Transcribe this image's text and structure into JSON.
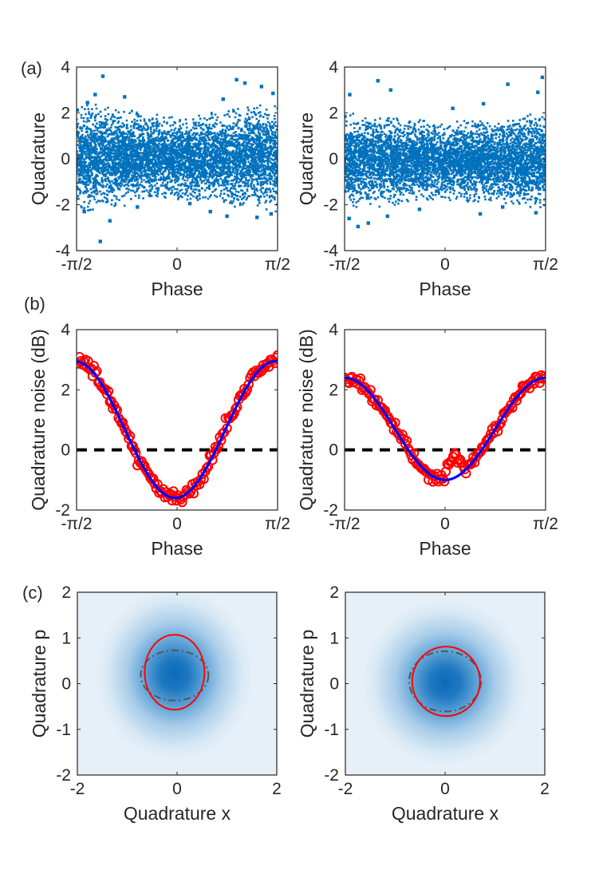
{
  "figure": {
    "panel_labels": [
      "(a)",
      "(b)",
      "(c)"
    ]
  },
  "colors": {
    "scatter": "#0072bd",
    "marker": "#ff0000",
    "fit": "#0000ff",
    "reference": "#000000",
    "contour_fit": "#ff0000",
    "contour_ref": "#555555",
    "density_high": "#0a6ab8",
    "density_low": "#e6f0f8"
  },
  "chart_data": [
    {
      "id": "a-left",
      "type": "scatter",
      "panel": "(a)",
      "xlabel": "Phase",
      "ylabel": "Quadrature",
      "xlim": [
        -1.5708,
        1.5708
      ],
      "ylim": [
        -4,
        4
      ],
      "xticks": [
        -1.5708,
        0,
        1.5708
      ],
      "xticklabels": [
        "-π/2",
        "0",
        "π/2"
      ],
      "yticks": [
        -4,
        -2,
        0,
        2,
        4
      ],
      "yticklabels": [
        "-4",
        "-2",
        "0",
        "2",
        "4"
      ],
      "band": {
        "center": 0.05,
        "halfwidth_edges": 1.75,
        "halfwidth_mid": 1.35
      },
      "outliers": [
        [
          -1.16,
          3.6
        ],
        [
          -1.28,
          2.8
        ],
        [
          -0.82,
          2.7
        ],
        [
          0.93,
          3.45
        ],
        [
          1.06,
          3.3
        ],
        [
          1.32,
          3.15
        ],
        [
          1.5,
          2.85
        ],
        [
          -1.4,
          2.45
        ],
        [
          0.72,
          2.6
        ],
        [
          -1.2,
          -3.6
        ],
        [
          -1.05,
          -2.7
        ],
        [
          -1.45,
          -2.3
        ],
        [
          0.78,
          -2.5
        ],
        [
          1.25,
          -2.55
        ],
        [
          1.47,
          -2.4
        ],
        [
          0.52,
          -2.3
        ],
        [
          -0.62,
          -2.1
        ],
        [
          0.2,
          -1.95
        ]
      ]
    },
    {
      "id": "a-right",
      "type": "scatter",
      "panel": "(a)",
      "xlabel": "Phase",
      "ylabel": "Quadrature",
      "xlim": [
        -1.5708,
        1.5708
      ],
      "ylim": [
        -4,
        4
      ],
      "xticks": [
        -1.5708,
        0,
        1.5708
      ],
      "xticklabels": [
        "-π/2",
        "0",
        "π/2"
      ],
      "yticks": [
        -4,
        -2,
        0,
        2,
        4
      ],
      "yticklabels": [
        "-4",
        "-2",
        "0",
        "2",
        "4"
      ],
      "band": {
        "center": -0.1,
        "halfwidth_edges": 1.55,
        "halfwidth_mid": 1.3
      },
      "outliers": [
        [
          -1.05,
          3.4
        ],
        [
          -0.85,
          3.0
        ],
        [
          0.98,
          3.25
        ],
        [
          1.52,
          3.55
        ],
        [
          1.45,
          2.9
        ],
        [
          -1.49,
          2.8
        ],
        [
          0.6,
          2.4
        ],
        [
          0.12,
          2.2
        ],
        [
          -1.36,
          -2.95
        ],
        [
          -1.2,
          -2.8
        ],
        [
          -1.5,
          -2.6
        ],
        [
          -0.9,
          -2.5
        ],
        [
          0.55,
          -2.4
        ],
        [
          1.42,
          -2.35
        ],
        [
          -0.4,
          -2.2
        ],
        [
          0.9,
          -2.1
        ]
      ]
    },
    {
      "id": "b-left",
      "type": "line",
      "panel": "(b)",
      "xlabel": "Phase",
      "ylabel": "Quadrature noise (dB)",
      "xlim": [
        -1.5708,
        1.5708
      ],
      "ylim": [
        -2,
        4
      ],
      "xticks": [
        -1.5708,
        0,
        1.5708
      ],
      "xticklabels": [
        "-π/2",
        "0",
        "π/2"
      ],
      "yticks": [
        -2,
        0,
        2,
        4
      ],
      "yticklabels": [
        "-2",
        "0",
        "2",
        "4"
      ],
      "fit": {
        "min_db": -1.6,
        "max_db": 2.95,
        "phase_offset": -0.03
      },
      "reference_db": 0,
      "series": [
        {
          "name": "measured",
          "style": "open red circles",
          "noise_db": 0.12
        },
        {
          "name": "fit",
          "style": "solid blue line"
        },
        {
          "name": "vacuum",
          "style": "dashed black line",
          "value": 0
        }
      ]
    },
    {
      "id": "b-right",
      "type": "line",
      "panel": "(b)",
      "xlabel": "Phase",
      "ylabel": "Quadrature noise (dB)",
      "xlim": [
        -1.5708,
        1.5708
      ],
      "ylim": [
        -2,
        4
      ],
      "xticks": [
        -1.5708,
        0,
        1.5708
      ],
      "xticklabels": [
        "-π/2",
        "0",
        "π/2"
      ],
      "yticks": [
        -2,
        0,
        2,
        4
      ],
      "yticklabels": [
        "-2",
        "0",
        "2",
        "4"
      ],
      "fit": {
        "min_db": -1.0,
        "max_db": 2.4,
        "phase_offset": 0.0
      },
      "reference_db": 0,
      "anomaly": {
        "phase": 0.15,
        "value_db": -0.05
      },
      "series": [
        {
          "name": "measured",
          "style": "open red circles",
          "noise_db": 0.1
        },
        {
          "name": "fit",
          "style": "solid blue line"
        },
        {
          "name": "vacuum",
          "style": "dashed black line",
          "value": 0
        }
      ]
    },
    {
      "id": "c-left",
      "type": "heatmap",
      "panel": "(c)",
      "xlabel": "Quadrature x",
      "ylabel": "Quadrature p",
      "xlim": [
        -2,
        2
      ],
      "ylim": [
        -2,
        2
      ],
      "xticks": [
        -2,
        0,
        2
      ],
      "xticklabels": [
        "-2",
        "0",
        "2"
      ],
      "yticks": [
        -2,
        -1,
        0,
        1,
        2
      ],
      "yticklabels": [
        "-2",
        "-1",
        "0",
        "1",
        "2"
      ],
      "density_center": [
        -0.05,
        0.2
      ],
      "density_sigma": [
        0.55,
        0.6
      ],
      "contour_fit": {
        "center": [
          -0.05,
          0.25
        ],
        "rx": 0.6,
        "ry": 0.82
      },
      "contour_ref": {
        "center": [
          -0.05,
          0.18
        ],
        "rx": 0.68,
        "ry": 0.55,
        "style": "dash-dot"
      }
    },
    {
      "id": "c-right",
      "type": "heatmap",
      "panel": "(c)",
      "xlabel": "Quadrature x",
      "ylabel": "Quadrature p",
      "xlim": [
        -2,
        2
      ],
      "ylim": [
        -2,
        2
      ],
      "xticks": [
        -2,
        0,
        2
      ],
      "xticklabels": [
        "-2",
        "0",
        "2"
      ],
      "yticks": [
        -2,
        -1,
        0,
        1,
        2
      ],
      "yticklabels": [
        "-2",
        "-1",
        "0",
        "1",
        "2"
      ],
      "density_center": [
        0.0,
        0.03
      ],
      "density_sigma": [
        0.58,
        0.58
      ],
      "contour_fit": {
        "center": [
          0.02,
          0.05
        ],
        "rx": 0.68,
        "ry": 0.76
      },
      "contour_ref": {
        "center": [
          0.0,
          0.05
        ],
        "rx": 0.72,
        "ry": 0.66,
        "style": "dash-dot"
      }
    }
  ]
}
